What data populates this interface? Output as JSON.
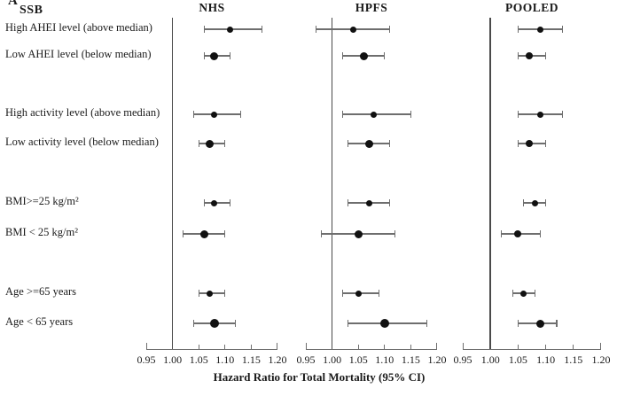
{
  "figure_label": "A",
  "group_column_header": "SSB",
  "x_axis_title": "Hazard Ratio for Total Mortality (95% CI)",
  "colors": {
    "marker": "#111111",
    "ci_line": "#6e6e6e",
    "reference_line": "#4a4a4a",
    "axis_line": "#6e6e6e",
    "text": "#1a1a1a",
    "background": "#ffffff"
  },
  "chart_data": {
    "type": "scatter",
    "subtype": "forest-plot",
    "figure_label": "A",
    "group_column_header": "SSB",
    "xlabel": "Hazard Ratio for Total Mortality (95% CI)",
    "xlim": [
      0.95,
      1.2
    ],
    "xticks": [
      0.95,
      1.0,
      1.05,
      1.1,
      1.15,
      1.2
    ],
    "xtick_labels": [
      "0.95",
      "1.00",
      "1.05",
      "1.10",
      "1.15",
      "1.20"
    ],
    "reference_line": 1.0,
    "grid": false,
    "legend_position": "none",
    "categories": [
      "High AHEI level (above median)",
      "Low AHEI level (below median)",
      "High activity level (above median)",
      "Low activity level (below median)",
      "BMI>=25 kg/m²",
      "BMI < 25 kg/m²",
      "Age >=65 years",
      "Age < 65 years"
    ],
    "series": [
      {
        "name": "NHS",
        "points": [
          {
            "hr": 1.11,
            "ci_low": 1.06,
            "ci_high": 1.17,
            "marker_size": 7
          },
          {
            "hr": 1.08,
            "ci_low": 1.06,
            "ci_high": 1.11,
            "marker_size": 9
          },
          {
            "hr": 1.08,
            "ci_low": 1.04,
            "ci_high": 1.13,
            "marker_size": 7
          },
          {
            "hr": 1.07,
            "ci_low": 1.05,
            "ci_high": 1.1,
            "marker_size": 9
          },
          {
            "hr": 1.08,
            "ci_low": 1.06,
            "ci_high": 1.11,
            "marker_size": 7
          },
          {
            "hr": 1.06,
            "ci_low": 1.02,
            "ci_high": 1.1,
            "marker_size": 9
          },
          {
            "hr": 1.07,
            "ci_low": 1.05,
            "ci_high": 1.1,
            "marker_size": 7
          },
          {
            "hr": 1.08,
            "ci_low": 1.04,
            "ci_high": 1.12,
            "marker_size": 10
          }
        ]
      },
      {
        "name": "HPFS",
        "points": [
          {
            "hr": 1.04,
            "ci_low": 0.97,
            "ci_high": 1.11,
            "marker_size": 7
          },
          {
            "hr": 1.06,
            "ci_low": 1.02,
            "ci_high": 1.1,
            "marker_size": 9
          },
          {
            "hr": 1.08,
            "ci_low": 1.02,
            "ci_high": 1.15,
            "marker_size": 7
          },
          {
            "hr": 1.07,
            "ci_low": 1.03,
            "ci_high": 1.11,
            "marker_size": 9
          },
          {
            "hr": 1.07,
            "ci_low": 1.03,
            "ci_high": 1.11,
            "marker_size": 7
          },
          {
            "hr": 1.05,
            "ci_low": 0.98,
            "ci_high": 1.12,
            "marker_size": 9
          },
          {
            "hr": 1.05,
            "ci_low": 1.02,
            "ci_high": 1.09,
            "marker_size": 7
          },
          {
            "hr": 1.1,
            "ci_low": 1.03,
            "ci_high": 1.18,
            "marker_size": 10
          }
        ]
      },
      {
        "name": "POOLED",
        "points": [
          {
            "hr": 1.09,
            "ci_low": 1.05,
            "ci_high": 1.13,
            "marker_size": 7
          },
          {
            "hr": 1.07,
            "ci_low": 1.05,
            "ci_high": 1.1,
            "marker_size": 8
          },
          {
            "hr": 1.09,
            "ci_low": 1.05,
            "ci_high": 1.13,
            "marker_size": 7
          },
          {
            "hr": 1.07,
            "ci_low": 1.05,
            "ci_high": 1.1,
            "marker_size": 8
          },
          {
            "hr": 1.08,
            "ci_low": 1.06,
            "ci_high": 1.1,
            "marker_size": 7
          },
          {
            "hr": 1.05,
            "ci_low": 1.02,
            "ci_high": 1.09,
            "marker_size": 8
          },
          {
            "hr": 1.06,
            "ci_low": 1.04,
            "ci_high": 1.08,
            "marker_size": 7
          },
          {
            "hr": 1.09,
            "ci_low": 1.05,
            "ci_high": 1.12,
            "marker_size": 9
          }
        ]
      }
    ]
  }
}
